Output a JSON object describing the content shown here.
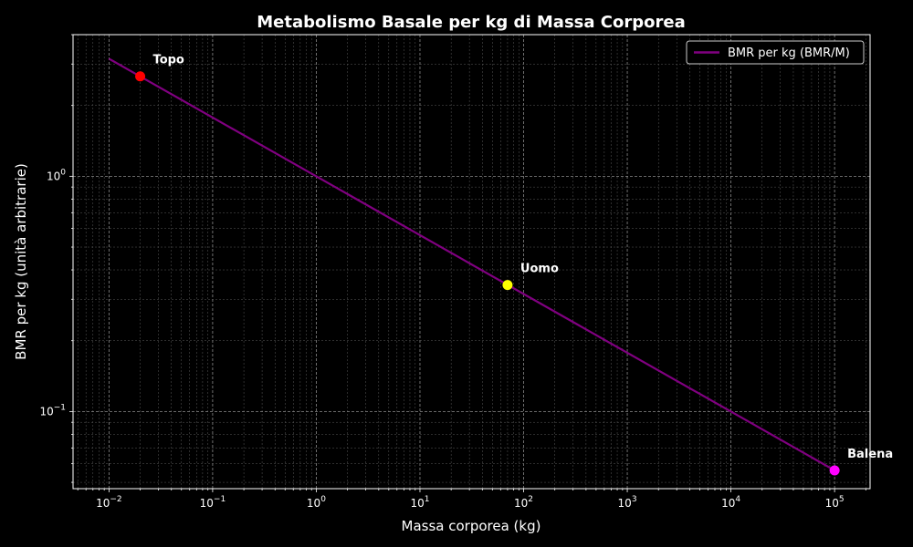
{
  "chart_data": {
    "type": "line",
    "title": "Metabolismo Basale per kg di Massa Corporea",
    "xlabel": "Massa corporea (kg)",
    "ylabel": "BMR per kg (unità arbitrarie)",
    "xscale": "log",
    "yscale": "log",
    "xlim": [
      0.0045,
      220000
    ],
    "ylim": [
      0.047,
      4.0
    ],
    "x_ticks": [
      {
        "base": "10",
        "exp": "−2",
        "value": 0.01
      },
      {
        "base": "10",
        "exp": "−1",
        "value": 0.1
      },
      {
        "base": "10",
        "exp": "0",
        "value": 1
      },
      {
        "base": "10",
        "exp": "1",
        "value": 10
      },
      {
        "base": "10",
        "exp": "2",
        "value": 100
      },
      {
        "base": "10",
        "exp": "3",
        "value": 1000
      },
      {
        "base": "10",
        "exp": "4",
        "value": 10000
      },
      {
        "base": "10",
        "exp": "5",
        "value": 100000
      }
    ],
    "y_ticks": [
      {
        "base": "10",
        "exp": "0",
        "value": 1
      },
      {
        "base": "10",
        "exp": "−1",
        "value": 0.1
      }
    ],
    "grid": true,
    "legend_position": "top-right",
    "series": [
      {
        "name": "BMR per kg (BMR/M)",
        "color": "#800080",
        "x": [
          0.01,
          100000
        ],
        "y": [
          3.16,
          0.0562
        ]
      }
    ],
    "points": [
      {
        "label": "Topo",
        "x": 0.02,
        "y": 2.66,
        "color": "#ff0000"
      },
      {
        "label": "Uomo",
        "x": 70,
        "y": 0.345,
        "color": "#ffff00"
      },
      {
        "label": "Balena",
        "x": 100000,
        "y": 0.0562,
        "color": "#ff00ff"
      }
    ]
  }
}
